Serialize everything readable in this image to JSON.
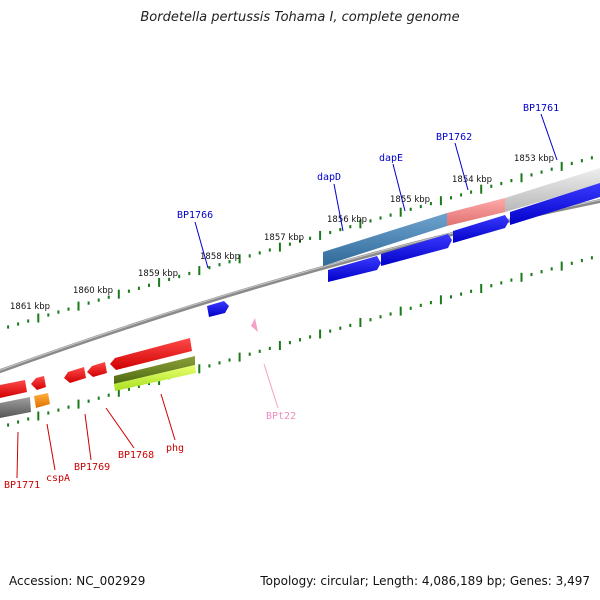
{
  "title": "Bordetella pertussis Tohama I, complete genome",
  "footer": {
    "accession": "Accession: NC_002929",
    "summary": "Topology: circular; Length: 4,086,189 bp; Genes: 3,497"
  },
  "scale": {
    "labels": [
      "1861 kbp",
      "1860 kbp",
      "1859 kbp",
      "1858 kbp",
      "1857 kbp",
      "1856 kbp",
      "1855 kbp",
      "1854 kbp",
      "1853 kbp"
    ]
  },
  "genes": {
    "top": [
      "BP1766",
      "dapD",
      "dapE",
      "BP1762",
      "BP1761"
    ],
    "bottom": [
      "BP1771",
      "cspA",
      "BP1769",
      "BP1768",
      "phg",
      "BPt22"
    ]
  },
  "colors": {
    "forward_cds": "#0000ee",
    "reverse_cds": "#ee0000",
    "scale_tick": "#1a7a1a",
    "backbone": "#777777",
    "trna": "#f4a0c8",
    "highlight_blue": "#4a86b4"
  }
}
